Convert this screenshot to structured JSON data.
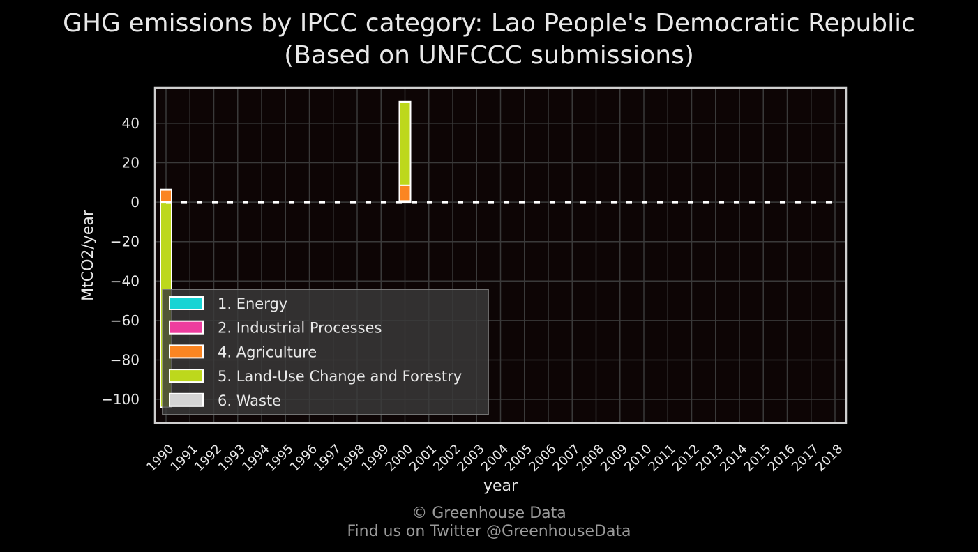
{
  "title_line1": "GHG emissions by IPCC category: Lao People's Democratic Republic",
  "title_line2": "(Based on UNFCCC submissions)",
  "credit_line1": "© Greenhouse Data",
  "credit_line2": "Find us on Twitter @GreenhouseData",
  "chart_data": {
    "type": "bar",
    "stacked": true,
    "xlabel": "year",
    "ylabel": "MtCO2/year",
    "ylim": [
      -112,
      58
    ],
    "yticks": [
      40,
      20,
      0,
      -20,
      -40,
      -60,
      -80,
      -100
    ],
    "grid": true,
    "legend_position": "lower-left",
    "categories": [
      "1990",
      "1991",
      "1992",
      "1993",
      "1994",
      "1995",
      "1996",
      "1997",
      "1998",
      "1999",
      "2000",
      "2001",
      "2002",
      "2003",
      "2004",
      "2005",
      "2006",
      "2007",
      "2008",
      "2009",
      "2010",
      "2011",
      "2012",
      "2013",
      "2014",
      "2015",
      "2016",
      "2017",
      "2018"
    ],
    "series": [
      {
        "name": "1. Energy",
        "color": "#17d4d4",
        "values": [
          0.2,
          null,
          null,
          null,
          null,
          null,
          null,
          null,
          null,
          null,
          0.5,
          null,
          null,
          null,
          null,
          null,
          null,
          null,
          null,
          null,
          null,
          null,
          null,
          null,
          null,
          null,
          null,
          null,
          null
        ]
      },
      {
        "name": "2. Industrial Processes",
        "color": "#ee3d9e",
        "values": [
          0,
          null,
          null,
          null,
          null,
          null,
          null,
          null,
          null,
          null,
          0.1,
          null,
          null,
          null,
          null,
          null,
          null,
          null,
          null,
          null,
          null,
          null,
          null,
          null,
          null,
          null,
          null,
          null,
          null
        ]
      },
      {
        "name": "4. Agriculture",
        "color": "#fb8522",
        "values": [
          6,
          null,
          null,
          null,
          null,
          null,
          null,
          null,
          null,
          null,
          8,
          null,
          null,
          null,
          null,
          null,
          null,
          null,
          null,
          null,
          null,
          null,
          null,
          null,
          null,
          null,
          null,
          null,
          null
        ]
      },
      {
        "name": "5. Land-Use Change and Forestry",
        "color": "#bdd81c",
        "values": [
          -104,
          null,
          null,
          null,
          null,
          null,
          null,
          null,
          null,
          null,
          42,
          null,
          null,
          null,
          null,
          null,
          null,
          null,
          null,
          null,
          null,
          null,
          null,
          null,
          null,
          null,
          null,
          null,
          null
        ]
      },
      {
        "name": "6. Waste",
        "color": "#d4d4d4",
        "values": [
          0.3,
          null,
          null,
          null,
          null,
          null,
          null,
          null,
          null,
          null,
          0.4,
          null,
          null,
          null,
          null,
          null,
          null,
          null,
          null,
          null,
          null,
          null,
          null,
          null,
          null,
          null,
          null,
          null,
          null
        ]
      }
    ],
    "total_line": {
      "style": "dashed",
      "color": "#ffffff"
    }
  },
  "colors": {
    "background": "#000000",
    "plot_background": "#0d0505",
    "grid": "#3a3a3a",
    "frame": "#cfcfcf",
    "text": "#e8e8e8",
    "legend_background": "#3a3a3a"
  }
}
